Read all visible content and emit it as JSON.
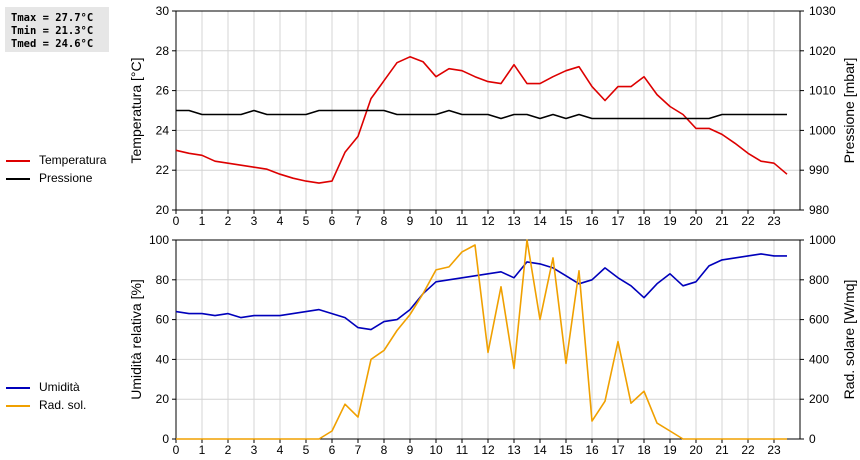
{
  "stats": {
    "tmax": "Tmax = 27.7°C",
    "tmin": "Tmin = 21.3°C",
    "tmed": "Tmed = 24.6°C"
  },
  "chart_data": [
    {
      "type": "line",
      "title": "",
      "xlabel": "",
      "xlim": [
        0,
        24
      ],
      "x_ticks": [
        "0",
        "1",
        "2",
        "3",
        "4",
        "5",
        "6",
        "7",
        "8",
        "9",
        "10",
        "11",
        "12",
        "13",
        "14",
        "15",
        "16",
        "17",
        "18",
        "19",
        "20",
        "21",
        "22",
        "23"
      ],
      "ylabel_left": "Temperatura [°C]",
      "ylim_left": [
        20,
        30
      ],
      "yticks_left": [
        "20",
        "22",
        "24",
        "26",
        "28",
        "30"
      ],
      "ylabel_right": "Pressione [mbar]",
      "ylim_right": [
        980,
        1030
      ],
      "yticks_right": [
        "980",
        "990",
        "1000",
        "1010",
        "1020",
        "1030"
      ],
      "grid": true,
      "legend_position": "left",
      "series": [
        {
          "name": "Temperatura",
          "axis": "left",
          "color": "#dd0000",
          "points": [
            [
              0,
              23.0
            ],
            [
              0.5,
              22.85
            ],
            [
              1,
              22.75
            ],
            [
              1.5,
              22.45
            ],
            [
              2,
              22.35
            ],
            [
              2.5,
              22.25
            ],
            [
              3,
              22.15
            ],
            [
              3.5,
              22.05
            ],
            [
              4,
              21.8
            ],
            [
              4.5,
              21.6
            ],
            [
              5,
              21.45
            ],
            [
              5.5,
              21.35
            ],
            [
              6,
              21.45
            ],
            [
              6.5,
              22.9
            ],
            [
              7,
              23.7
            ],
            [
              7.5,
              25.6
            ],
            [
              8,
              26.5
            ],
            [
              8.5,
              27.4
            ],
            [
              9,
              27.7
            ],
            [
              9.5,
              27.45
            ],
            [
              10,
              26.7
            ],
            [
              10.5,
              27.1
            ],
            [
              11,
              27.0
            ],
            [
              11.5,
              26.7
            ],
            [
              12,
              26.45
            ],
            [
              12.5,
              26.35
            ],
            [
              13,
              27.3
            ],
            [
              13.5,
              26.35
            ],
            [
              14,
              26.35
            ],
            [
              14.5,
              26.7
            ],
            [
              15,
              27.0
            ],
            [
              15.5,
              27.2
            ],
            [
              16,
              26.2
            ],
            [
              16.5,
              25.5
            ],
            [
              17,
              26.2
            ],
            [
              17.5,
              26.2
            ],
            [
              18,
              26.7
            ],
            [
              18.5,
              25.8
            ],
            [
              19,
              25.2
            ],
            [
              19.5,
              24.8
            ],
            [
              20,
              24.1
            ],
            [
              20.5,
              24.1
            ],
            [
              21,
              23.8
            ],
            [
              21.5,
              23.35
            ],
            [
              22,
              22.85
            ],
            [
              22.5,
              22.45
            ],
            [
              23,
              22.35
            ],
            [
              23.5,
              21.8
            ]
          ]
        },
        {
          "name": "Pressione",
          "axis": "right",
          "color": "#000000",
          "points": [
            [
              0,
              1005
            ],
            [
              0.5,
              1005
            ],
            [
              1,
              1004
            ],
            [
              1.5,
              1004
            ],
            [
              2,
              1004
            ],
            [
              2.5,
              1004
            ],
            [
              3,
              1005
            ],
            [
              3.5,
              1004
            ],
            [
              4,
              1004
            ],
            [
              4.5,
              1004
            ],
            [
              5,
              1004
            ],
            [
              5.5,
              1005
            ],
            [
              6,
              1005
            ],
            [
              6.5,
              1005
            ],
            [
              7,
              1005
            ],
            [
              7.5,
              1005
            ],
            [
              8,
              1005
            ],
            [
              8.5,
              1004
            ],
            [
              9,
              1004
            ],
            [
              9.5,
              1004
            ],
            [
              10,
              1004
            ],
            [
              10.5,
              1005
            ],
            [
              11,
              1004
            ],
            [
              11.5,
              1004
            ],
            [
              12,
              1004
            ],
            [
              12.5,
              1003
            ],
            [
              13,
              1004
            ],
            [
              13.5,
              1004
            ],
            [
              14,
              1003
            ],
            [
              14.5,
              1004
            ],
            [
              15,
              1003
            ],
            [
              15.5,
              1004
            ],
            [
              16,
              1003
            ],
            [
              16.5,
              1003
            ],
            [
              17,
              1003
            ],
            [
              17.5,
              1003
            ],
            [
              18,
              1003
            ],
            [
              18.5,
              1003
            ],
            [
              19,
              1003
            ],
            [
              19.5,
              1003
            ],
            [
              20,
              1003
            ],
            [
              20.5,
              1003
            ],
            [
              21,
              1004
            ],
            [
              21.5,
              1004
            ],
            [
              22,
              1004
            ],
            [
              22.5,
              1004
            ],
            [
              23,
              1004
            ],
            [
              23.5,
              1004
            ]
          ]
        }
      ]
    },
    {
      "type": "line",
      "title": "",
      "xlabel": "",
      "xlim": [
        0,
        24
      ],
      "x_ticks": [
        "0",
        "1",
        "2",
        "3",
        "4",
        "5",
        "6",
        "7",
        "8",
        "9",
        "10",
        "11",
        "12",
        "13",
        "14",
        "15",
        "16",
        "17",
        "18",
        "19",
        "20",
        "21",
        "22",
        "23"
      ],
      "ylabel_left": "Umidità relativa [%]",
      "ylim_left": [
        0,
        100
      ],
      "yticks_left": [
        "0",
        "20",
        "40",
        "60",
        "80",
        "100"
      ],
      "ylabel_right": "Rad. solare [W/mq]",
      "ylim_right": [
        0,
        1000
      ],
      "yticks_right": [
        "0",
        "200",
        "400",
        "600",
        "800",
        "1000"
      ],
      "grid": true,
      "legend_position": "left",
      "series": [
        {
          "name": "Umidità",
          "axis": "left",
          "color": "#0000bb",
          "points": [
            [
              0,
              64
            ],
            [
              0.5,
              63
            ],
            [
              1,
              63
            ],
            [
              1.5,
              62
            ],
            [
              2,
              63
            ],
            [
              2.5,
              61
            ],
            [
              3,
              62
            ],
            [
              3.5,
              62
            ],
            [
              4,
              62
            ],
            [
              4.5,
              63
            ],
            [
              5,
              64
            ],
            [
              5.5,
              65
            ],
            [
              6,
              63
            ],
            [
              6.5,
              61
            ],
            [
              7,
              56
            ],
            [
              7.5,
              55
            ],
            [
              8,
              59
            ],
            [
              8.5,
              60
            ],
            [
              9,
              65
            ],
            [
              9.5,
              73
            ],
            [
              10,
              79
            ],
            [
              10.5,
              80
            ],
            [
              11,
              81
            ],
            [
              11.5,
              82
            ],
            [
              12,
              83
            ],
            [
              12.5,
              84
            ],
            [
              13,
              81
            ],
            [
              13.5,
              89
            ],
            [
              14,
              88
            ],
            [
              14.5,
              86
            ],
            [
              15,
              82
            ],
            [
              15.5,
              78
            ],
            [
              16,
              80
            ],
            [
              16.5,
              86
            ],
            [
              17,
              81
            ],
            [
              17.5,
              77
            ],
            [
              18,
              71
            ],
            [
              18.5,
              78
            ],
            [
              19,
              83
            ],
            [
              19.5,
              77
            ],
            [
              20,
              79
            ],
            [
              20.5,
              87
            ],
            [
              21,
              90
            ],
            [
              21.5,
              91
            ],
            [
              22,
              92
            ],
            [
              22.5,
              93
            ],
            [
              23,
              92
            ],
            [
              23.5,
              92
            ]
          ]
        },
        {
          "name": "Rad. sol.",
          "axis": "right",
          "color": "#f0a000",
          "points": [
            [
              0,
              0
            ],
            [
              0.5,
              0
            ],
            [
              1,
              0
            ],
            [
              1.5,
              0
            ],
            [
              2,
              0
            ],
            [
              2.5,
              0
            ],
            [
              3,
              0
            ],
            [
              3.5,
              0
            ],
            [
              4,
              0
            ],
            [
              4.5,
              0
            ],
            [
              5,
              0
            ],
            [
              5.5,
              0
            ],
            [
              6,
              40
            ],
            [
              6.5,
              175
            ],
            [
              7,
              110
            ],
            [
              7.5,
              400
            ],
            [
              8,
              445
            ],
            [
              8.5,
              545
            ],
            [
              9,
              625
            ],
            [
              9.5,
              730
            ],
            [
              10,
              850
            ],
            [
              10.5,
              865
            ],
            [
              11,
              940
            ],
            [
              11.5,
              975
            ],
            [
              12,
              435
            ],
            [
              12.5,
              765
            ],
            [
              13,
              355
            ],
            [
              13.5,
              1000
            ],
            [
              14,
              600
            ],
            [
              14.5,
              910
            ],
            [
              15,
              380
            ],
            [
              15.5,
              845
            ],
            [
              16,
              90
            ],
            [
              16.5,
              190
            ],
            [
              17,
              490
            ],
            [
              17.5,
              180
            ],
            [
              18,
              240
            ],
            [
              18.5,
              80
            ],
            [
              19,
              40
            ],
            [
              19.5,
              0
            ],
            [
              20,
              0
            ],
            [
              20.5,
              0
            ],
            [
              21,
              0
            ],
            [
              21.5,
              0
            ],
            [
              22,
              0
            ],
            [
              22.5,
              0
            ],
            [
              23,
              0
            ],
            [
              23.5,
              0
            ]
          ]
        }
      ]
    }
  ]
}
